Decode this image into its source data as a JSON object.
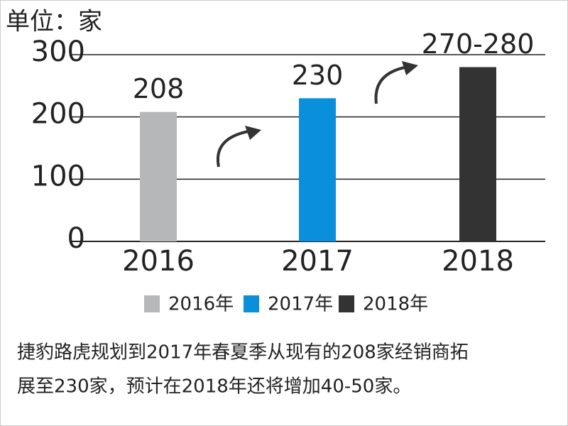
{
  "chart_data": {
    "type": "bar",
    "unit_label": "单位：家",
    "categories": [
      "2016",
      "2017",
      "2018"
    ],
    "series": [
      {
        "name": "2016年",
        "color": "#b5b7b9",
        "values": [
          208,
          null,
          null
        ],
        "value_labels": [
          "208",
          null,
          null
        ]
      },
      {
        "name": "2017年",
        "color": "#0a8fdc",
        "values": [
          null,
          230,
          null
        ],
        "value_labels": [
          null,
          "230",
          null
        ]
      },
      {
        "name": "2018年",
        "color": "#333333",
        "values": [
          null,
          null,
          280
        ],
        "value_labels": [
          null,
          null,
          "270-280"
        ]
      }
    ],
    "ylim": [
      0,
      300
    ],
    "yticks": [
      0,
      100,
      200,
      300
    ],
    "grid": true,
    "caption": [
      "捷豹路虎规划到2017年春夏季从现有的208家经销商拓",
      "展至230家，预计在2018年还将增加40-50家。"
    ]
  }
}
